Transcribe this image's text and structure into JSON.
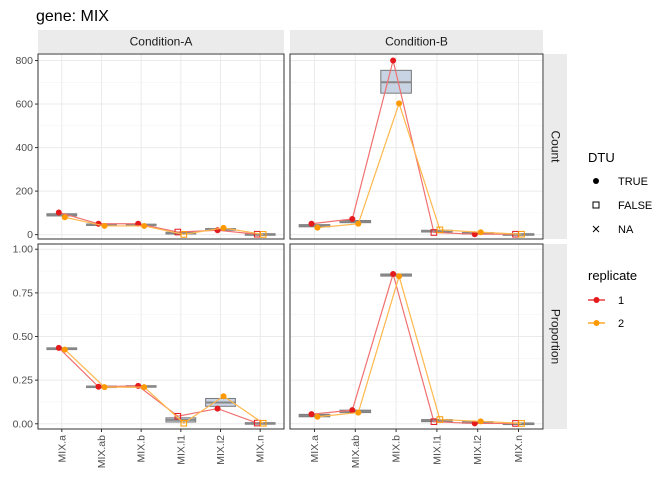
{
  "chart_data": {
    "type": "line",
    "title": "gene: MIX",
    "categories": [
      "MIX.a",
      "MIX.ab",
      "MIX.b",
      "MIX.l1",
      "MIX.l2",
      "MIX.n"
    ],
    "facet_columns": [
      "Condition-A",
      "Condition-B"
    ],
    "facet_rows": [
      "Count",
      "Proportion"
    ],
    "legend_position": "right",
    "grid": true,
    "rows": [
      {
        "name": "Count",
        "ylim": [
          -20,
          830
        ],
        "yticks": [
          0,
          200,
          400,
          600,
          800
        ],
        "yticklabels": [
          "0",
          "200",
          "400",
          "600",
          "800"
        ],
        "panels": [
          {
            "condition": "Condition-A",
            "boxes": [
              {
                "q1": 86,
                "median": 91,
                "q3": 96
              },
              {
                "q1": 43,
                "median": 46,
                "q3": 49
              },
              {
                "q1": 42,
                "median": 45,
                "q3": 48
              },
              {
                "q1": 3,
                "median": 7,
                "q3": 11
              },
              {
                "q1": 20,
                "median": 24,
                "q3": 28
              },
              {
                "q1": 0,
                "median": 2,
                "q3": 4
              }
            ],
            "series": [
              {
                "name": "1",
                "dtu": [
                  "TRUE",
                  "TRUE",
                  "TRUE",
                  "FALSE",
                  "TRUE",
                  "FALSE"
                ],
                "values": [
                  102,
                  50,
                  50,
                  12,
                  20,
                  2
                ]
              },
              {
                "name": "2",
                "dtu": [
                  "TRUE",
                  "TRUE",
                  "TRUE",
                  "FALSE",
                  "TRUE",
                  "FALSE"
                ],
                "values": [
                  80,
                  40,
                  40,
                  1,
                  31,
                  1
                ]
              }
            ]
          },
          {
            "condition": "Condition-B",
            "boxes": [
              {
                "q1": 36,
                "median": 41,
                "q3": 46
              },
              {
                "q1": 55,
                "median": 60,
                "q3": 65
              },
              {
                "q1": 650,
                "median": 700,
                "q3": 755
              },
              {
                "q1": 12,
                "median": 16,
                "q3": 20
              },
              {
                "q1": 4,
                "median": 7,
                "q3": 10
              },
              {
                "q1": 0,
                "median": 2,
                "q3": 4
              }
            ],
            "series": [
              {
                "name": "1",
                "dtu": [
                  "TRUE",
                  "TRUE",
                  "TRUE",
                  "FALSE",
                  "TRUE",
                  "FALSE"
                ],
                "values": [
                  50,
                  72,
                  800,
                  10,
                  2,
                  2
                ]
              },
              {
                "name": "2",
                "dtu": [
                  "TRUE",
                  "TRUE",
                  "TRUE",
                  "FALSE",
                  "TRUE",
                  "FALSE"
                ],
                "values": [
                  32,
                  50,
                  603,
                  22,
                  11,
                  2
                ]
              }
            ]
          }
        ]
      },
      {
        "name": "Proportion",
        "ylim": [
          -0.03,
          1.03
        ],
        "yticks": [
          0,
          0.25,
          0.5,
          0.75,
          1
        ],
        "yticklabels": [
          "0.00",
          "0.25",
          "0.50",
          "0.75",
          "1.00"
        ],
        "panels": [
          {
            "condition": "Condition-A",
            "boxes": [
              {
                "q1": 0.425,
                "median": 0.43,
                "q3": 0.435
              },
              {
                "q1": 0.208,
                "median": 0.212,
                "q3": 0.216
              },
              {
                "q1": 0.21,
                "median": 0.214,
                "q3": 0.218
              },
              {
                "q1": 0.01,
                "median": 0.022,
                "q3": 0.034
              },
              {
                "q1": 0.1,
                "median": 0.122,
                "q3": 0.145
              },
              {
                "q1": 0.0,
                "median": 0.003,
                "q3": 0.006
              }
            ],
            "series": [
              {
                "name": "1",
                "dtu": [
                  "TRUE",
                  "TRUE",
                  "TRUE",
                  "FALSE",
                  "TRUE",
                  "FALSE"
                ],
                "values": [
                  0.435,
                  0.212,
                  0.217,
                  0.043,
                  0.087,
                  0.004
                ]
              },
              {
                "name": "2",
                "dtu": [
                  "TRUE",
                  "TRUE",
                  "TRUE",
                  "FALSE",
                  "TRUE",
                  "FALSE"
                ],
                "values": [
                  0.425,
                  0.21,
                  0.21,
                  0.003,
                  0.158,
                  0.003
                ]
              }
            ]
          },
          {
            "condition": "Condition-B",
            "boxes": [
              {
                "q1": 0.04,
                "median": 0.047,
                "q3": 0.054
              },
              {
                "q1": 0.064,
                "median": 0.071,
                "q3": 0.078
              },
              {
                "q1": 0.846,
                "median": 0.852,
                "q3": 0.858
              },
              {
                "q1": 0.012,
                "median": 0.018,
                "q3": 0.024
              },
              {
                "q1": 0.004,
                "median": 0.008,
                "q3": 0.012
              },
              {
                "q1": 0.0,
                "median": 0.002,
                "q3": 0.004
              }
            ],
            "series": [
              {
                "name": "1",
                "dtu": [
                  "TRUE",
                  "TRUE",
                  "TRUE",
                  "FALSE",
                  "TRUE",
                  "FALSE"
                ],
                "values": [
                  0.055,
                  0.078,
                  0.858,
                  0.012,
                  0.002,
                  0.002
                ]
              },
              {
                "name": "2",
                "dtu": [
                  "TRUE",
                  "TRUE",
                  "TRUE",
                  "FALSE",
                  "TRUE",
                  "FALSE"
                ],
                "values": [
                  0.04,
                  0.064,
                  0.845,
                  0.024,
                  0.014,
                  0.002
                ]
              }
            ]
          }
        ]
      }
    ]
  },
  "colors": {
    "replicate_1": "#e41a1c",
    "replicate_2": "#ff9900",
    "line_1": "#f07070",
    "line_2": "#ffb84d",
    "box_fill": "#c8d3e3",
    "box_stroke": "#7a7a7a",
    "median": "#888888",
    "panel_bg": "#ffffff"
  },
  "legend": {
    "dtu": {
      "title": "DTU",
      "items": [
        {
          "label": "TRUE",
          "shape": "filled-circle"
        },
        {
          "label": "FALSE",
          "shape": "open-square"
        },
        {
          "label": "NA",
          "shape": "cross"
        }
      ]
    },
    "replicate": {
      "title": "replicate",
      "items": [
        {
          "label": "1",
          "color_key": "replicate_1"
        },
        {
          "label": "2",
          "color_key": "replicate_2"
        }
      ]
    }
  }
}
